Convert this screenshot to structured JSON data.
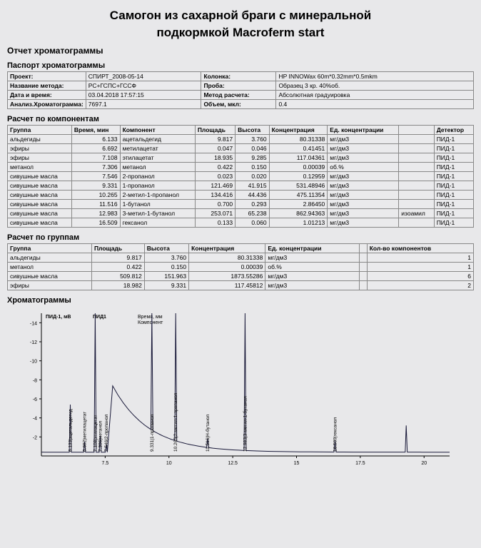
{
  "title_l1": "Самогон из сахарной браги с минеральной",
  "title_l2": "подкормкой Macroferm start",
  "report_heading": "Отчет хроматограммы",
  "passport_heading": "Паспорт хроматограммы",
  "passport": {
    "rows": [
      [
        "Проект:",
        "СПИРТ_2008-05-14",
        "Колонка:",
        "HP INNOWax 60m*0.32mm*0.5mkm"
      ],
      [
        "Название метода:",
        "РС+ГСПС+ГССФ",
        "Проба:",
        "Образец 3 кр. 40%об."
      ],
      [
        "Дата и время:",
        "03.04.2018 17:57:15",
        "Метод расчета:",
        "Абсолютная градуировка"
      ],
      [
        "Анализ.Хроматограмма:",
        "7697.1",
        "Объем, мкл:",
        "0.4"
      ]
    ]
  },
  "components_heading": "Расчет по компонентам",
  "components": {
    "headers": [
      "Группа",
      "Время, мин",
      "Компонент",
      "Площадь",
      "Высота",
      "Концентрация",
      "Ед. концентрации",
      "",
      "Детектор"
    ],
    "rows": [
      [
        "альдегиды",
        "6.133",
        "ацетальдегид",
        "9.817",
        "3.760",
        "80.31338",
        "мг/дм3",
        "",
        "ПИД-1"
      ],
      [
        "эфиры",
        "6.692",
        "метилацетат",
        "0.047",
        "0.046",
        "0.41451",
        "мг/дм3",
        "",
        "ПИД-1"
      ],
      [
        "эфиры",
        "7.108",
        "этилацетат",
        "18.935",
        "9.285",
        "117.04361",
        "мг/дм3",
        "",
        "ПИД-1"
      ],
      [
        "метанол",
        "7.306",
        "метанол",
        "0.422",
        "0.150",
        "0.00039",
        "об.%",
        "",
        "ПИД-1"
      ],
      [
        "сивушные масла",
        "7.546",
        "2-пропанол",
        "0.023",
        "0.020",
        "0.12959",
        "мг/дм3",
        "",
        "ПИД-1"
      ],
      [
        "сивушные масла",
        "9.331",
        "1-пропанол",
        "121.469",
        "41.915",
        "531.48946",
        "мг/дм3",
        "",
        "ПИД-1"
      ],
      [
        "сивушные масла",
        "10.265",
        "2-метил-1-пропанол",
        "134.416",
        "44.436",
        "475.11354",
        "мг/дм3",
        "",
        "ПИД-1"
      ],
      [
        "сивушные масла",
        "11.516",
        "1-бутанол",
        "0.700",
        "0.293",
        "2.86450",
        "мг/дм3",
        "",
        "ПИД-1"
      ],
      [
        "сивушные масла",
        "12.983",
        "3-метил-1-бутанол",
        "253.071",
        "65.238",
        "862.94363",
        "мг/дм3",
        "изоамил",
        "ПИД-1"
      ],
      [
        "сивушные масла",
        "16.509",
        "гексанол",
        "0.133",
        "0.060",
        "1.01213",
        "мг/дм3",
        "",
        "ПИД-1"
      ]
    ]
  },
  "groups_heading": "Расчет по группам",
  "groups": {
    "headers": [
      "Группа",
      "Площадь",
      "Высота",
      "Концентрация",
      "Ед. концентрации",
      "",
      "Кол-во компонентов"
    ],
    "rows": [
      [
        "альдегиды",
        "9.817",
        "3.760",
        "80.31338",
        "мг/дм3",
        "",
        "1"
      ],
      [
        "метанол",
        "0.422",
        "0.150",
        "0.00039",
        "об.%",
        "",
        "1"
      ],
      [
        "сивушные масла",
        "509.812",
        "151.963",
        "1873.55286",
        "мг/дм3",
        "",
        "6"
      ],
      [
        "эфиры",
        "18.982",
        "9.331",
        "117.45812",
        "мг/дм3",
        "",
        "2"
      ]
    ]
  },
  "chrom_heading": "Хроматограммы",
  "chart": {
    "y_axis_label": "ПИД-1, мВ",
    "secondary_label": "ПИД1",
    "box_labels": [
      "Время, мм",
      "Компонент"
    ],
    "ylim": [
      0,
      15
    ],
    "yticks": [
      2,
      4,
      6,
      8,
      10,
      12,
      14
    ],
    "xlim": [
      5,
      21
    ],
    "xticks": [
      7.5,
      10,
      12.5,
      15,
      17.5,
      20
    ],
    "axis_color": "#000000",
    "grid_color": "#bfbfc4",
    "line_color": "#1a1a3a",
    "background_color": "#e8e8ea",
    "peaks": [
      {
        "t": 6.133,
        "h": 5.4,
        "label": "6.133|ацетальдегид"
      },
      {
        "t": 6.692,
        "h": 1.5,
        "label": "6.692|метилацетат"
      },
      {
        "t": 7.108,
        "h": 15,
        "label": "7.108|этилацетат"
      },
      {
        "t": 7.306,
        "h": 2.1,
        "label": "7.306|метанол"
      },
      {
        "t": 7.546,
        "h": 1.2,
        "label": "7.546|2-пропанол"
      },
      {
        "t": 9.331,
        "h": 15,
        "label": "9.331|1-пропанол"
      },
      {
        "t": 10.265,
        "h": 15,
        "label": "10.265|2-метил-1-пропанол"
      },
      {
        "t": 11.516,
        "h": 1.8,
        "label": "11.516|Н-бутанол"
      },
      {
        "t": 12.983,
        "h": 15,
        "label": "12.983|3-метил-1-бутанол"
      },
      {
        "t": 16.509,
        "h": 1.6,
        "label": "16.509|гексанол"
      },
      {
        "t": 19.3,
        "h": 3.2,
        "label": ""
      }
    ],
    "baseline_decay_start_t": 7.6,
    "baseline_decay_start_h": 8.0
  },
  "watermark": ""
}
